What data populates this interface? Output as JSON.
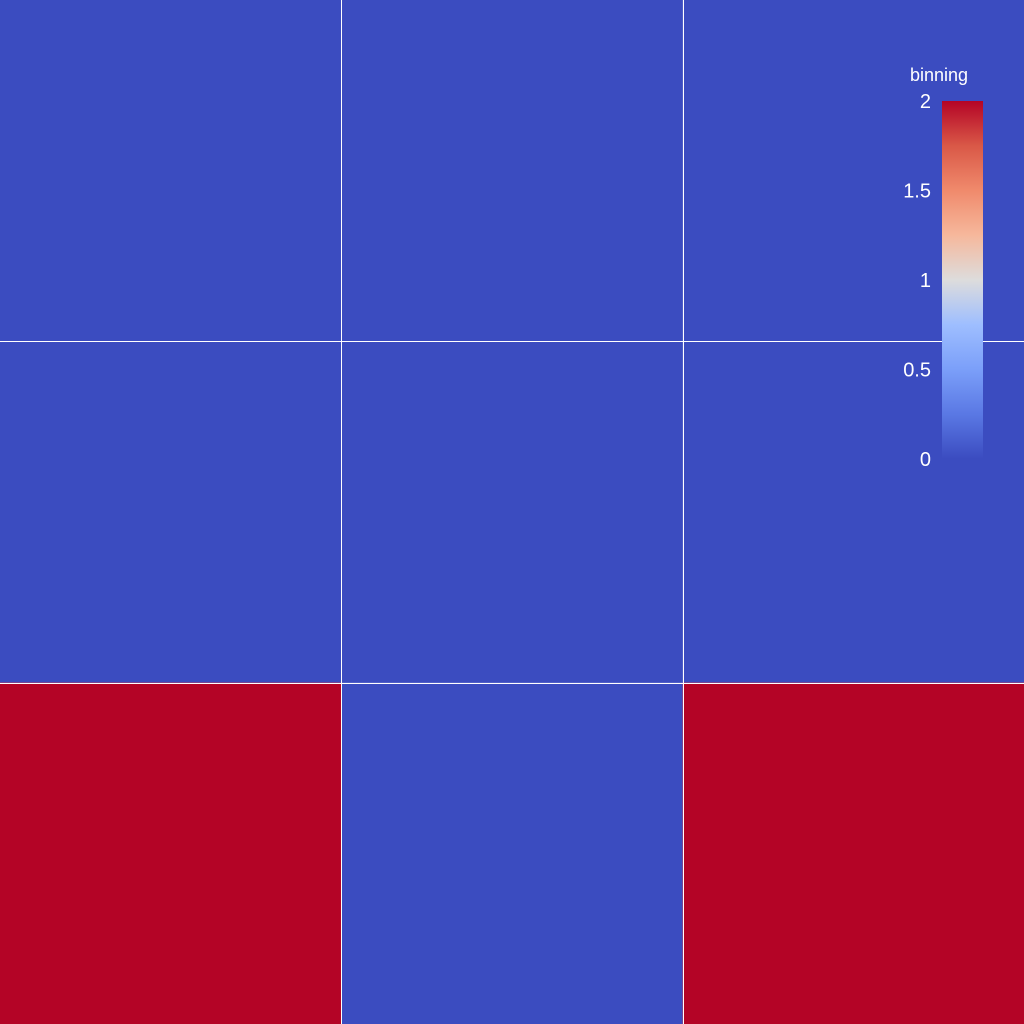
{
  "chart_data": {
    "type": "heatmap",
    "rows": 3,
    "cols": 3,
    "values": [
      [
        0,
        0,
        0
      ],
      [
        0,
        0,
        0
      ],
      [
        2,
        0,
        2
      ]
    ],
    "colorbar": {
      "title": "binning",
      "min": 0,
      "max": 2,
      "ticks": [
        2,
        1.5,
        1,
        0.5,
        0
      ],
      "tick_labels": [
        "2",
        "1.5",
        "1",
        "0.5",
        "0"
      ],
      "colormap": "coolwarm",
      "placement": "top-right"
    },
    "grid": true,
    "colors": {
      "low": "#3b4cc0",
      "high": "#b40426",
      "grid": "#ffffff"
    }
  }
}
